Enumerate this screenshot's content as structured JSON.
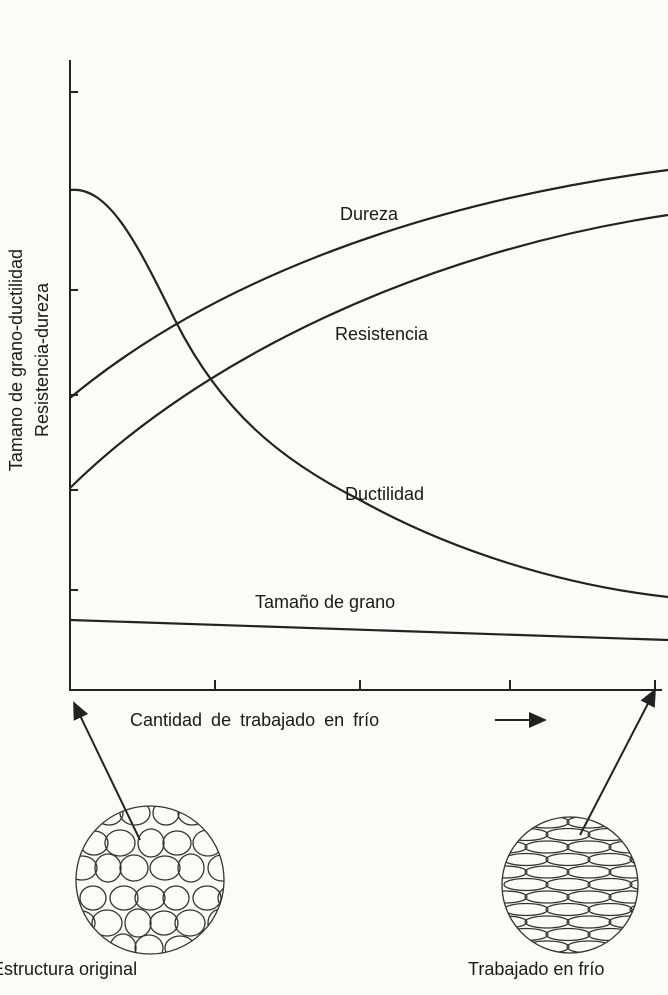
{
  "axis_labels": {
    "y_outer": "Tamano de grano-ductilidad",
    "y_inner": "Resistencia-dureza"
  },
  "curves": [
    "Dureza",
    "Resistencia",
    "Ductilidad",
    "Tamaño de grano"
  ],
  "x_axis_label": "Cantidad de trabajado en frío",
  "structures": {
    "original": "Estructura original",
    "worked": "Trabajado en frío"
  }
}
